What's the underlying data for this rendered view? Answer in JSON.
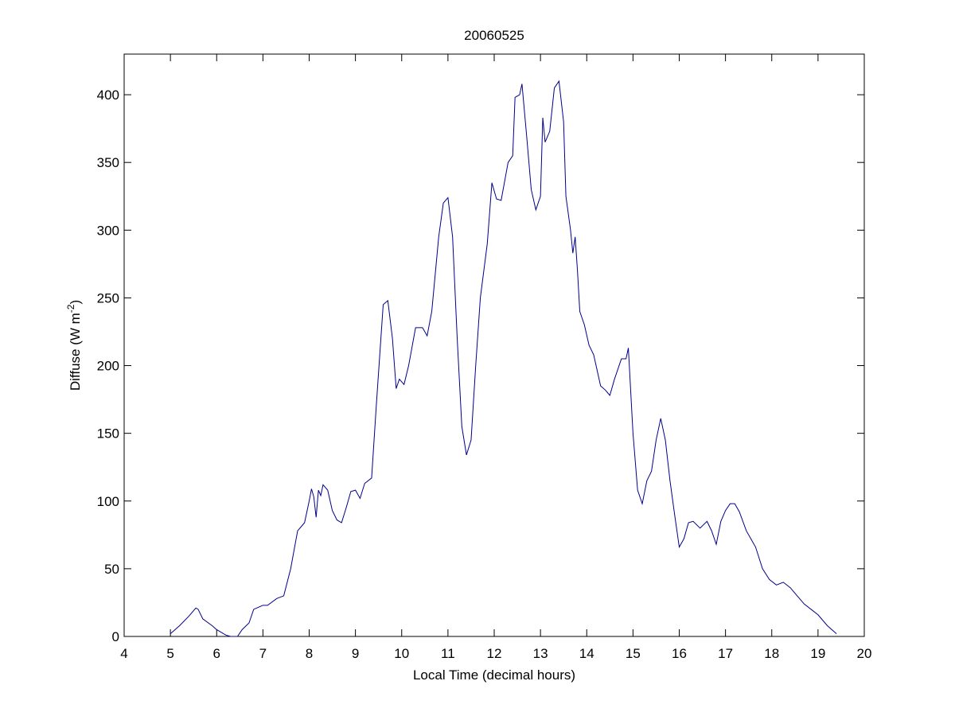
{
  "chart_data": {
    "type": "line",
    "title": "20060525",
    "xlabel": "Local Time (decimal hours)",
    "ylabel": {
      "text": "Diffuse (W m",
      "superscript": "-2",
      "end": ")"
    },
    "xlim": [
      4,
      20
    ],
    "xticks": [
      4,
      5,
      6,
      7,
      8,
      9,
      10,
      11,
      12,
      13,
      14,
      15,
      16,
      17,
      18,
      19,
      20
    ],
    "ylim": [
      0,
      430
    ],
    "yticks": [
      0,
      50,
      100,
      150,
      200,
      250,
      300,
      350,
      400
    ],
    "series": [
      {
        "color": "#00008b",
        "x": [
          5.0,
          5.2,
          5.4,
          5.55,
          5.6,
          5.7,
          5.9,
          6.0,
          6.2,
          6.3,
          6.45,
          6.55,
          6.7,
          6.8,
          7.0,
          7.1,
          7.3,
          7.45,
          7.6,
          7.75,
          7.9,
          8.0,
          8.05,
          8.1,
          8.15,
          8.2,
          8.25,
          8.3,
          8.4,
          8.5,
          8.6,
          8.7,
          8.8,
          8.9,
          9.0,
          9.1,
          9.2,
          9.35,
          9.45,
          9.6,
          9.7,
          9.8,
          9.88,
          9.95,
          10.05,
          10.15,
          10.3,
          10.45,
          10.55,
          10.65,
          10.8,
          10.9,
          11.0,
          11.1,
          11.2,
          11.3,
          11.4,
          11.5,
          11.6,
          11.7,
          11.85,
          11.95,
          12.05,
          12.15,
          12.3,
          12.4,
          12.45,
          12.55,
          12.6,
          12.7,
          12.8,
          12.9,
          13.0,
          13.05,
          13.1,
          13.2,
          13.3,
          13.4,
          13.5,
          13.55,
          13.65,
          13.7,
          13.75,
          13.8,
          13.85,
          13.95,
          14.05,
          14.15,
          14.3,
          14.4,
          14.5,
          14.6,
          14.75,
          14.85,
          14.9,
          15.0,
          15.1,
          15.2,
          15.3,
          15.4,
          15.5,
          15.6,
          15.7,
          15.8,
          15.9,
          16.0,
          16.1,
          16.2,
          16.3,
          16.45,
          16.6,
          16.7,
          16.8,
          16.9,
          17.0,
          17.1,
          17.2,
          17.3,
          17.45,
          17.55,
          17.65,
          17.8,
          17.95,
          18.1,
          18.25,
          18.4,
          18.5,
          18.7,
          18.85,
          19.0,
          19.2,
          19.4
        ],
        "values": [
          2,
          8,
          15,
          21,
          20,
          13,
          8,
          5,
          1,
          0,
          0,
          5,
          10,
          20,
          23,
          23,
          28,
          30,
          50,
          78,
          84,
          100,
          109,
          103,
          88,
          108,
          104,
          112,
          108,
          93,
          86,
          84,
          95,
          107,
          108,
          102,
          113,
          117,
          170,
          245,
          248,
          220,
          183,
          190,
          186,
          200,
          228,
          228,
          222,
          240,
          295,
          320,
          324,
          295,
          220,
          155,
          134,
          145,
          200,
          250,
          290,
          335,
          323,
          322,
          350,
          355,
          398,
          400,
          408,
          370,
          330,
          315,
          325,
          383,
          365,
          373,
          405,
          410,
          380,
          325,
          300,
          283,
          295,
          270,
          240,
          230,
          215,
          208,
          185,
          182,
          178,
          190,
          205,
          205,
          213,
          150,
          108,
          98,
          115,
          122,
          145,
          161,
          145,
          115,
          90,
          66,
          72,
          84,
          85,
          80,
          85,
          78,
          68,
          85,
          93,
          98,
          98,
          92,
          78,
          72,
          66,
          50,
          42,
          38,
          40,
          36,
          32,
          24,
          20,
          16,
          8,
          2
        ]
      }
    ]
  }
}
